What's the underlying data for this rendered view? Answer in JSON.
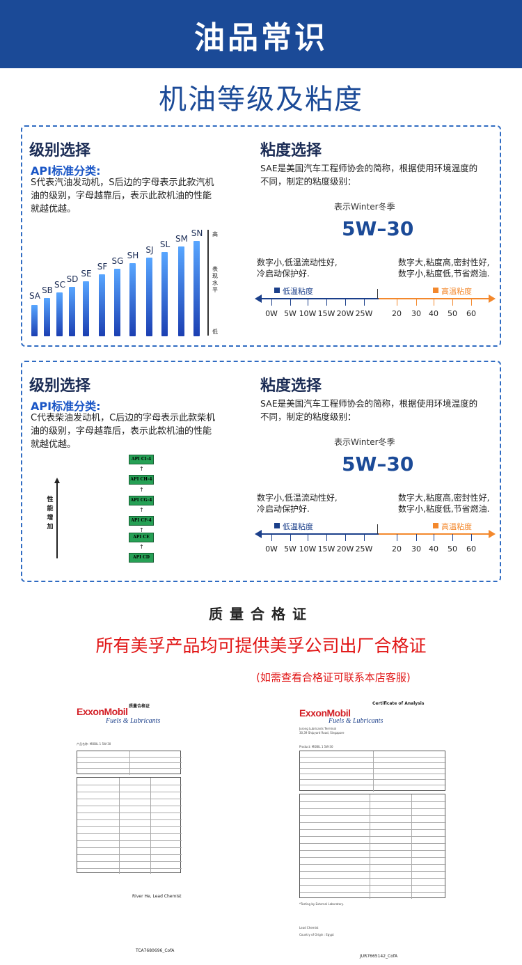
{
  "header": {
    "title": "油品常识"
  },
  "section_title": "机油等级及粘度",
  "gasoline_panel": {
    "grade_heading": "级别选择",
    "api_subtitle": "API标准分类:",
    "description_lines": [
      "S代表汽油发动机，S后边的字母表示此款汽机",
      "油的级别，字母越靠后，表示此款机油的性能",
      "就越优越。"
    ],
    "grades": [
      "SA",
      "SB",
      "SC",
      "SD",
      "SE",
      "SF",
      "SG",
      "SH",
      "SJ",
      "SL",
      "SM",
      "SN"
    ],
    "scale_top": "高",
    "scale_middle": "表现水平",
    "scale_bottom": "低"
  },
  "diesel_panel": {
    "grade_heading": "级别选择",
    "api_subtitle": "API标准分类:",
    "description_lines": [
      "C代表柴油发动机，C后边的字母表示此款柴机",
      "油的级别，字母越靠后，表示此款机油的性能",
      "就越优越。"
    ],
    "grades": [
      "API CI-4",
      "API CH-4",
      "API CG-4",
      "API CF-4",
      "API CE",
      "API CD"
    ],
    "performance_label": "性能增加"
  },
  "viscosity": {
    "heading": "粘度选择",
    "description_lines": [
      "SAE是美国汽车工程师协会的简称，根据使用环境温度的",
      "不同，制定的粘度级别："
    ],
    "winter_label": "表示Winter冬季",
    "grade": "5W–30",
    "left_note_lines": [
      "数字小,低温流动性好,",
      "冷启动保护好."
    ],
    "right_note_lines": [
      "数字大,粘度高,密封性好,",
      "数字小,粘度低,节省燃油."
    ],
    "low_temp_label": "低温粘度",
    "high_temp_label": "高温粘度",
    "winter_grades": [
      "0W",
      "5W",
      "10W",
      "15W",
      "20W",
      "25W"
    ],
    "summer_grades": [
      "20",
      "30",
      "40",
      "50",
      "60"
    ]
  },
  "certificate": {
    "heading": "质量合格证",
    "statement": "所有美孚产品均可提供美孚公司出厂合格证",
    "contact_note": "(如需查看合格证可联系本店客服)",
    "doc1": {
      "title": "质量合格证",
      "brand": "ExxonMobil",
      "sub_brand": "Fuels & Lubricants",
      "product": "产品名称: MOBIL 1 5W-30",
      "signature": "River He, Lead Chemist",
      "footer": "TCA7680696_CofA"
    },
    "doc2": {
      "title": "Certificate of Analysis",
      "brand": "ExxonMobil",
      "sub_brand": "Fuels & Lubricants",
      "terminal": "Jurong Lubricants Terminal",
      "address": "30,39 Shipyard Road, Singapore",
      "product": "Product: MOBIL 1 5W-30",
      "testing_note": "*Testing by External Laboratory.",
      "signature": "Lead Chemist",
      "origin": "Country of Origin : Egypt",
      "footer": "JUR7665142_CofA"
    }
  },
  "colors": {
    "banner": "#1b4a97",
    "accent_blue": "#1a56c6",
    "orange": "#f3882c",
    "red": "#e11616",
    "diesel_green": "#26a055"
  }
}
